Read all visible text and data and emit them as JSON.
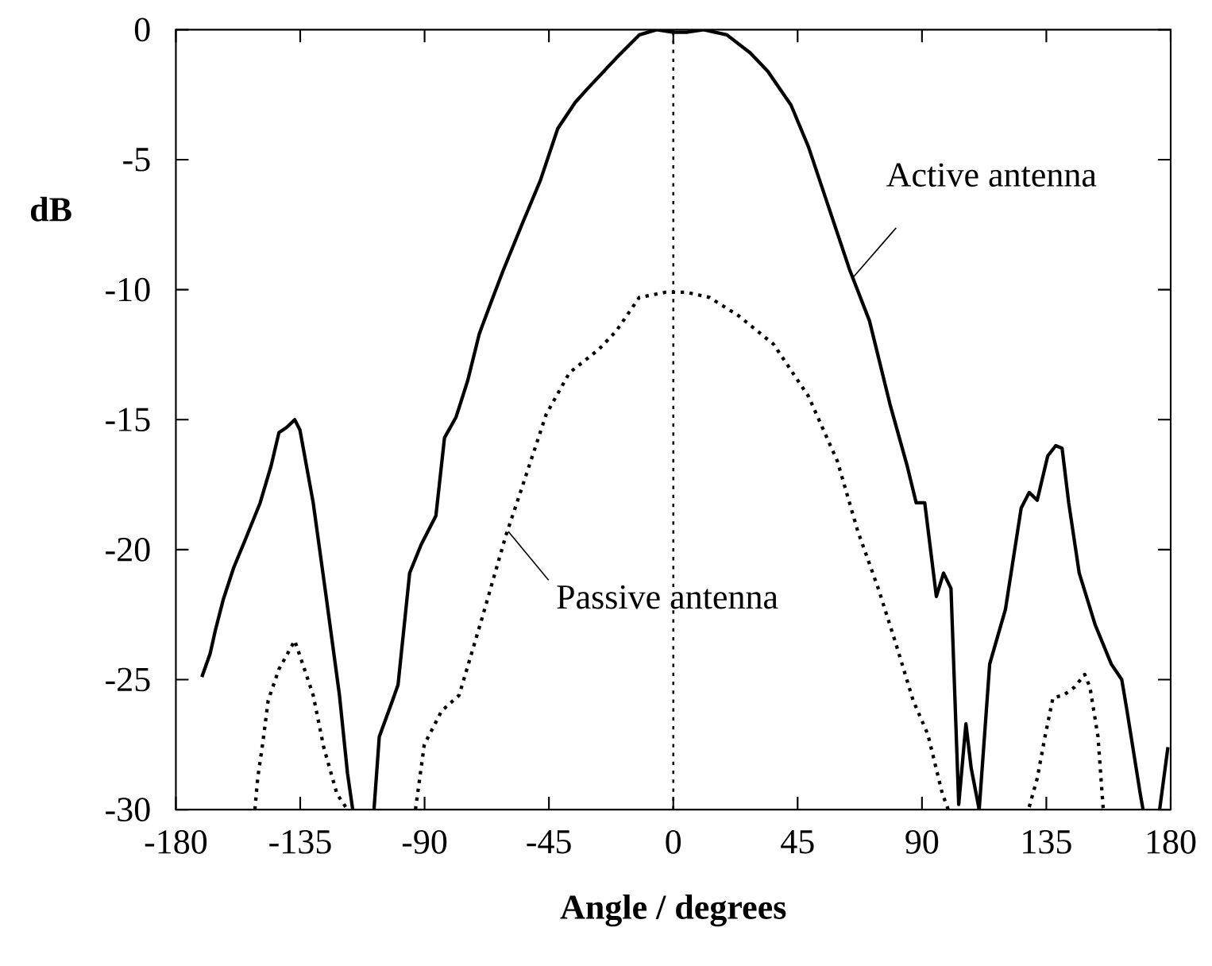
{
  "chart_data": {
    "type": "line",
    "xlabel": "Angle / degrees",
    "ylabel": "dB",
    "xlim": [
      -180,
      180
    ],
    "ylim": [
      -30,
      0
    ],
    "xticks": [
      -180,
      -135,
      -90,
      -45,
      0,
      45,
      90,
      135,
      180
    ],
    "yticks": [
      -30,
      -25,
      -20,
      -15,
      -10,
      -5,
      0
    ],
    "series": [
      {
        "color": "#000000",
        "line_style": "solid",
        "x": [
          -170.6,
          -167.6,
          -165.7,
          -162.8,
          -159.1,
          -155.2,
          -149.5,
          -145.6,
          -142.7,
          -139.9,
          -137,
          -135.1,
          -130.3,
          -125.5,
          -120.8,
          -117.9,
          -116,
          null,
          -108.3,
          -106.4,
          -101.6,
          -99.6,
          -95.4,
          -91.2,
          -85.9,
          -82.8,
          -78.6,
          -74.4,
          -70.2,
          -66,
          -61.7,
          -54.4,
          -48.1,
          -41.8,
          -35.5,
          -31.3,
          -20.7,
          -12.3,
          -6,
          0,
          4.7,
          11,
          19.4,
          27.9,
          34.2,
          42.6,
          48.9,
          55.2,
          63.7,
          71,
          78.4,
          84.7,
          87.9,
          91,
          95.2,
          97.8,
          100.5,
          103.3,
          105.9,
          107.8,
          110.7,
          114.5,
          120.2,
          125.9,
          128.8,
          131.7,
          135.5,
          138.4,
          140.7,
          143.1,
          146.9,
          152.7,
          158.5,
          162.3,
          164.2,
          169,
          170,
          null,
          176,
          179
        ],
        "values": [
          -24.9,
          -24,
          -23.1,
          -21.9,
          -20.7,
          -19.7,
          -18.2,
          -16.8,
          -15.5,
          -15.3,
          -15,
          -15.4,
          -18.2,
          -21.9,
          -25.6,
          -28.6,
          -30,
          null,
          -30,
          -27.2,
          -25.8,
          -25.2,
          -20.9,
          -19.8,
          -18.7,
          -15.7,
          -14.9,
          -13.5,
          -11.7,
          -10.5,
          -9.3,
          -7.4,
          -5.8,
          -3.8,
          -2.8,
          -2.3,
          -1.1,
          -0.2,
          0,
          -0.1,
          -0.1,
          0,
          -0.2,
          -0.9,
          -1.6,
          -2.9,
          -4.5,
          -6.5,
          -9.2,
          -11.2,
          -14.4,
          -16.8,
          -18.2,
          -18.2,
          -21.8,
          -20.9,
          -21.5,
          -29.8,
          -26.7,
          -28.4,
          -30,
          -24.4,
          -22.3,
          -18.4,
          -17.8,
          -18.1,
          -16.4,
          -16,
          -16.1,
          -18.2,
          -20.9,
          -22.9,
          -24.4,
          -25,
          -26.2,
          -29.4,
          -30,
          null,
          -30,
          -27.6
        ]
      },
      {
        "color": "#000000",
        "line_style": "dotted",
        "x": [
          -151.4,
          -150.4,
          -148.5,
          -146.6,
          -142.7,
          -137,
          -134.1,
          -130.3,
          -126.5,
          -121.7,
          -117.9,
          null,
          -93.3,
          -90.1,
          -83.8,
          -77.5,
          -69.1,
          -60.7,
          -54.4,
          -46,
          -37.6,
          -27,
          -20.7,
          -12.3,
          -2.8,
          4.7,
          13.1,
          23.6,
          36.3,
          48.9,
          59.4,
          66.8,
          74.2,
          80.5,
          86.8,
          92.1,
          97.4,
          99.5,
          null,
          128.8,
          131.7,
          134.5,
          137.4,
          141.2,
          145.1,
          148.9,
          150.8,
          153.7,
          155.6
        ],
        "values": [
          -30,
          -28.8,
          -27.4,
          -25.8,
          -24.6,
          -23.5,
          -24.4,
          -25.6,
          -27.6,
          -29.4,
          -30,
          null,
          -30,
          -27.5,
          -26.2,
          -25.6,
          -22.6,
          -19.5,
          -17.5,
          -14.8,
          -13.2,
          -12.3,
          -11.6,
          -10.3,
          -10.1,
          -10.1,
          -10.3,
          -11,
          -12.1,
          -14.1,
          -16.6,
          -19.3,
          -21.5,
          -23.6,
          -25.8,
          -27.1,
          -29.4,
          -30,
          null,
          -29.9,
          -28.8,
          -27.2,
          -25.7,
          -25.6,
          -25.3,
          -24.8,
          -25.3,
          -27.2,
          -30
        ]
      }
    ],
    "ref_lines": [
      {
        "axis": "x",
        "value": 0,
        "color": "#000000",
        "line_style": "dotted"
      }
    ],
    "annotations": [
      {
        "text": "Active antenna",
        "x": 65.3,
        "y": -9.5
      },
      {
        "text": "Passive antenna",
        "x": -59.7,
        "y": -19.3
      }
    ]
  }
}
